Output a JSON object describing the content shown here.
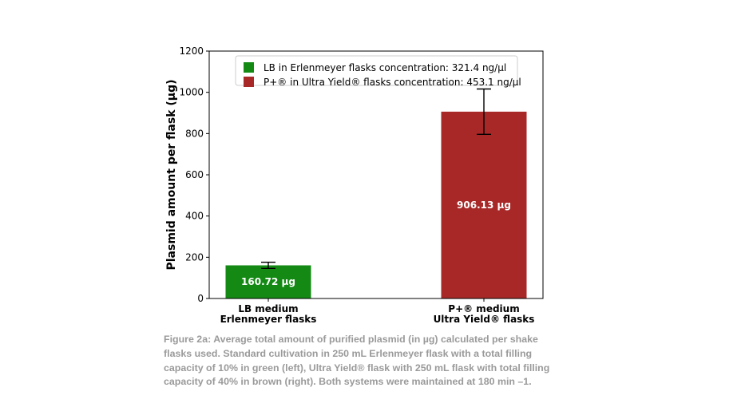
{
  "chart_data": {
    "type": "bar",
    "title": "",
    "xlabel": "",
    "ylabel": "Plasmid amount per flask (µg)",
    "ylim": [
      0,
      1200
    ],
    "yticks": [
      0,
      200,
      400,
      600,
      800,
      1000,
      1200
    ],
    "categories": [
      {
        "lines": [
          "LB medium",
          "Erlenmeyer flasks"
        ]
      },
      {
        "lines": [
          "P+® medium",
          "Ultra Yield® flasks"
        ]
      }
    ],
    "values": [
      160.72,
      906.13
    ],
    "error": [
      15,
      110
    ],
    "data_labels": [
      "160.72 µg",
      "906.13 µg"
    ],
    "colors": [
      "#148a14",
      "#a82828"
    ],
    "legend": {
      "placement": "top-center",
      "entries": [
        {
          "label": "LB in Erlenmeyer flasks concentration: 321.4 ng/µl",
          "color": "#148a14"
        },
        {
          "label": "P+® in Ultra Yield® flasks concentration: 453.1 ng/µl",
          "color": "#a82828"
        }
      ]
    },
    "grid": false
  },
  "caption": "Figure 2a: Average total amount of purified plasmid (in µg) calculated per shake flasks used. Standard cultivation in 250 mL Erlenmeyer flask with a total filling capacity of 10% in green (left), Ultra Yield® flask with 250 mL flask with total filling capacity of 40% in brown (right). Both systems were maintained at 180 min –1."
}
